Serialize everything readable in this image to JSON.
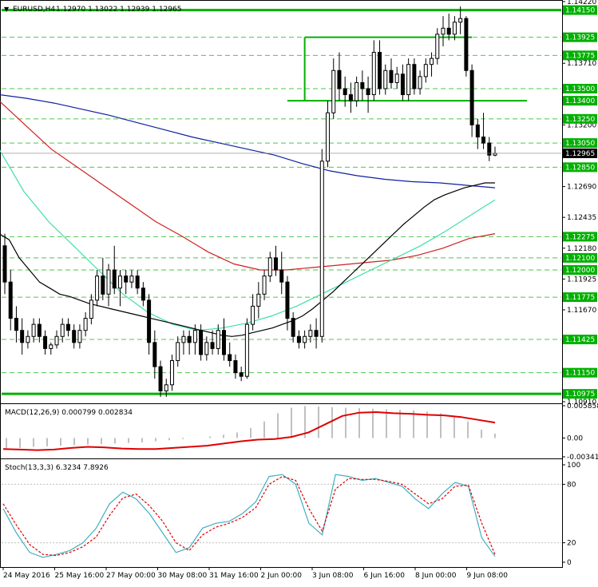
{
  "header": {
    "arrow": "▼",
    "symbol": "EURUSD,H4",
    "ohlc": "1.12970 1.13022 1.12939 1.12965"
  },
  "colors": {
    "bull_body": "#ffffff",
    "bear_body": "#000000",
    "candle_outline": "#000000",
    "sma_short": "#000000",
    "sma_cyan": "#40e0a0",
    "sma_red": "#d02020",
    "sma_blue": "#1020a0",
    "level_green": "#00b000",
    "macd_hist": "#c0c0c0",
    "macd_signal": "#e00000",
    "stoch_main": "#40b0c0",
    "stoch_signal": "#e00000",
    "current_price_bg": "#000000"
  },
  "chart_data": [
    {
      "type": "candlestick",
      "name": "EURUSD H4",
      "ylim": [
        1.1091,
        1.1422
      ],
      "y_ticks": [
        "1.14220",
        "1.13710",
        "1.13200",
        "1.12690",
        "1.12435",
        "1.12180",
        "1.11925",
        "1.11670",
        "1.10910"
      ],
      "level_labels": [
        "1.14150",
        "1.13925",
        "1.13775",
        "1.13500",
        "1.13400",
        "1.13250",
        "1.13050",
        "1.12850",
        "1.12275",
        "1.12100",
        "1.12000",
        "1.11775",
        "1.11425",
        "1.11150",
        "1.10975"
      ],
      "current_price": "1.12965",
      "horizontal_levels": [
        {
          "price": 1.1415,
          "style": "solid-thick"
        },
        {
          "price": 1.10975,
          "style": "solid-thick"
        },
        {
          "price": 1.134,
          "style": "solid"
        }
      ],
      "dashed_levels": [
        1.13925,
        1.13775,
        1.135,
        1.1325,
        1.1305,
        1.1285,
        1.12275,
        1.121,
        1.12,
        1.11775,
        1.11425,
        1.1115
      ],
      "box": {
        "top": 1.13925,
        "bottom": 1.134
      },
      "candles": [
        [
          1.122,
          1.123,
          1.118,
          1.119
        ],
        [
          1.119,
          1.12,
          1.115,
          1.116
        ],
        [
          1.116,
          1.117,
          1.114,
          1.115
        ],
        [
          1.115,
          1.116,
          1.113,
          1.114
        ],
        [
          1.114,
          1.115,
          1.1135,
          1.1145
        ],
        [
          1.1145,
          1.116,
          1.114,
          1.1155
        ],
        [
          1.1155,
          1.116,
          1.114,
          1.1145
        ],
        [
          1.1145,
          1.115,
          1.113,
          1.1135
        ],
        [
          1.1135,
          1.114,
          1.113,
          1.1138
        ],
        [
          1.1138,
          1.115,
          1.1135,
          1.1145
        ],
        [
          1.1145,
          1.116,
          1.114,
          1.1155
        ],
        [
          1.1155,
          1.116,
          1.1145,
          1.115
        ],
        [
          1.115,
          1.1155,
          1.1135,
          1.114
        ],
        [
          1.114,
          1.1155,
          1.1135,
          1.115
        ],
        [
          1.115,
          1.1165,
          1.1145,
          1.116
        ],
        [
          1.116,
          1.118,
          1.1155,
          1.1175
        ],
        [
          1.1175,
          1.12,
          1.117,
          1.1195
        ],
        [
          1.1195,
          1.121,
          1.1175,
          1.118
        ],
        [
          1.118,
          1.1205,
          1.117,
          1.12
        ],
        [
          1.12,
          1.122,
          1.118,
          1.1185
        ],
        [
          1.1185,
          1.12,
          1.117,
          1.1195
        ],
        [
          1.1195,
          1.12,
          1.118,
          1.119
        ],
        [
          1.119,
          1.12,
          1.1185,
          1.1195
        ],
        [
          1.1195,
          1.12,
          1.118,
          1.1185
        ],
        [
          1.1185,
          1.119,
          1.117,
          1.1175
        ],
        [
          1.1175,
          1.118,
          1.113,
          1.114
        ],
        [
          1.114,
          1.115,
          1.111,
          1.112
        ],
        [
          1.112,
          1.1125,
          1.1095,
          1.11
        ],
        [
          1.11,
          1.111,
          1.1095,
          1.1105
        ],
        [
          1.1105,
          1.113,
          1.11,
          1.1125
        ],
        [
          1.1125,
          1.1145,
          1.112,
          1.114
        ],
        [
          1.114,
          1.115,
          1.113,
          1.1145
        ],
        [
          1.1145,
          1.115,
          1.113,
          1.114
        ],
        [
          1.114,
          1.1155,
          1.113,
          1.115
        ],
        [
          1.115,
          1.1155,
          1.1125,
          1.113
        ],
        [
          1.113,
          1.1145,
          1.1125,
          1.114
        ],
        [
          1.114,
          1.115,
          1.113,
          1.1135
        ],
        [
          1.1135,
          1.1155,
          1.113,
          1.115
        ],
        [
          1.115,
          1.116,
          1.1125,
          1.113
        ],
        [
          1.113,
          1.114,
          1.112,
          1.1125
        ],
        [
          1.1125,
          1.113,
          1.111,
          1.1115
        ],
        [
          1.1115,
          1.112,
          1.1108,
          1.1112
        ],
        [
          1.1112,
          1.116,
          1.111,
          1.1155
        ],
        [
          1.1155,
          1.118,
          1.115,
          1.117
        ],
        [
          1.117,
          1.119,
          1.116,
          1.118
        ],
        [
          1.118,
          1.12,
          1.1175,
          1.1195
        ],
        [
          1.1195,
          1.1215,
          1.119,
          1.121
        ],
        [
          1.121,
          1.122,
          1.1195,
          1.12
        ],
        [
          1.12,
          1.1215,
          1.118,
          1.119
        ],
        [
          1.119,
          1.1195,
          1.115,
          1.116
        ],
        [
          1.116,
          1.1165,
          1.114,
          1.1145
        ],
        [
          1.1145,
          1.115,
          1.1135,
          1.114
        ],
        [
          1.114,
          1.115,
          1.1135,
          1.1145
        ],
        [
          1.1145,
          1.1155,
          1.114,
          1.115
        ],
        [
          1.115,
          1.116,
          1.1135,
          1.1145
        ],
        [
          1.1145,
          1.13,
          1.114,
          1.129
        ],
        [
          1.129,
          1.134,
          1.1285,
          1.133
        ],
        [
          1.133,
          1.1375,
          1.1325,
          1.1365
        ],
        [
          1.1365,
          1.138,
          1.134,
          1.135
        ],
        [
          1.135,
          1.136,
          1.1335,
          1.1345
        ],
        [
          1.1345,
          1.1355,
          1.133,
          1.134
        ],
        [
          1.134,
          1.136,
          1.1335,
          1.1355
        ],
        [
          1.1355,
          1.1365,
          1.134,
          1.135
        ],
        [
          1.135,
          1.136,
          1.133,
          1.1345
        ],
        [
          1.1345,
          1.139,
          1.134,
          1.138
        ],
        [
          1.138,
          1.139,
          1.1345,
          1.135
        ],
        [
          1.135,
          1.137,
          1.1345,
          1.1365
        ],
        [
          1.1365,
          1.1375,
          1.135,
          1.1355
        ],
        [
          1.1355,
          1.1368,
          1.135,
          1.1362
        ],
        [
          1.1362,
          1.137,
          1.134,
          1.1345
        ],
        [
          1.1345,
          1.1375,
          1.134,
          1.137
        ],
        [
          1.137,
          1.1375,
          1.1345,
          1.135
        ],
        [
          1.135,
          1.1365,
          1.1345,
          1.136
        ],
        [
          1.136,
          1.1375,
          1.1355,
          1.137
        ],
        [
          1.137,
          1.138,
          1.136,
          1.1375
        ],
        [
          1.1375,
          1.14,
          1.137,
          1.1395
        ],
        [
          1.1395,
          1.141,
          1.1385,
          1.14
        ],
        [
          1.14,
          1.1412,
          1.139,
          1.1395
        ],
        [
          1.1395,
          1.141,
          1.139,
          1.1405
        ],
        [
          1.1405,
          1.1418,
          1.1395,
          1.1408
        ],
        [
          1.1408,
          1.141,
          1.136,
          1.1365
        ],
        [
          1.1365,
          1.137,
          1.131,
          1.132
        ],
        [
          1.132,
          1.1325,
          1.13,
          1.131
        ],
        [
          1.131,
          1.133,
          1.13,
          1.1305
        ],
        [
          1.1305,
          1.131,
          1.129,
          1.1295
        ],
        [
          1.1295,
          1.1302,
          1.1294,
          1.12965
        ]
      ],
      "sma_short": [
        1.123,
        1.1225,
        1.121,
        1.12,
        1.119,
        1.1185,
        1.118,
        1.1178,
        1.1175,
        1.1172,
        1.117,
        1.1168,
        1.1166,
        1.1164,
        1.1162,
        1.116,
        1.1158,
        1.1156,
        1.1154,
        1.1152,
        1.115,
        1.1148,
        1.1146,
        1.1145,
        1.1146,
        1.1148,
        1.115,
        1.1152,
        1.1155,
        1.1158,
        1.1162,
        1.1168,
        1.1175,
        1.1182,
        1.119,
        1.1198,
        1.1206,
        1.1214,
        1.1222,
        1.123,
        1.1238,
        1.1245,
        1.1252,
        1.1258,
        1.1262,
        1.1265,
        1.1268,
        1.127,
        1.1272,
        1.1272
      ],
      "sma_cyan": [
        1.13,
        1.1265,
        1.124,
        1.122,
        1.12,
        1.118,
        1.1165,
        1.1155,
        1.115,
        1.1152,
        1.1156,
        1.1162,
        1.117,
        1.118,
        1.119,
        1.12,
        1.121,
        1.122,
        1.1232,
        1.1245,
        1.1258
      ],
      "sma_red": [
        1.134,
        1.132,
        1.13,
        1.1285,
        1.127,
        1.1255,
        1.124,
        1.1228,
        1.1215,
        1.1205,
        1.12,
        1.12,
        1.1202,
        1.1204,
        1.1206,
        1.1208,
        1.1212,
        1.1218,
        1.1226,
        1.123
      ],
      "sma_blue": [
        1.1345,
        1.1342,
        1.1338,
        1.1333,
        1.1328,
        1.1322,
        1.1316,
        1.131,
        1.1305,
        1.13,
        1.1295,
        1.1288,
        1.1282,
        1.1278,
        1.1275,
        1.1273,
        1.1272,
        1.127,
        1.1268
      ]
    },
    {
      "type": "bar-line",
      "name": "MACD",
      "label": "MACD(12,26,9) 0.000799 0.002834",
      "ylim": [
        -0.003411,
        0.005858
      ],
      "y_ticks": [
        "0.005858",
        "0.00",
        "-0.003411"
      ],
      "histogram": [
        -0.002,
        -0.0018,
        -0.0016,
        -0.0015,
        -0.0014,
        -0.0013,
        -0.0012,
        -0.0011,
        -0.001,
        -0.0009,
        -0.0008,
        -0.0006,
        -0.0004,
        -0.0002,
        0.0,
        0.0003,
        0.0006,
        0.001,
        0.0018,
        0.003,
        0.0045,
        0.0055,
        0.0058,
        0.0057,
        0.0056,
        0.0055,
        0.0054,
        0.0053,
        0.0052,
        0.0051,
        0.005,
        0.0048,
        0.0045,
        0.004,
        0.003,
        0.0015,
        0.0008
      ],
      "signal": [
        -0.002,
        -0.0021,
        -0.0022,
        -0.0021,
        -0.0018,
        -0.0016,
        -0.0017,
        -0.0019,
        -0.002,
        -0.002,
        -0.0018,
        -0.0016,
        -0.0014,
        -0.001,
        -0.0006,
        -0.0003,
        -0.0002,
        0.0002,
        0.001,
        0.0025,
        0.004,
        0.0046,
        0.0047,
        0.0045,
        0.0044,
        0.0042,
        0.0041,
        0.0038,
        0.0033,
        0.0028
      ],
      "signal_value": 0.002834,
      "macd_value": 0.000799
    },
    {
      "type": "line",
      "name": "Stochastic",
      "label": "Stoch(13,3,3) 6.3234 7.8926",
      "ylim": [
        0,
        100
      ],
      "y_ticks": [
        "100",
        "80",
        "20",
        "0"
      ],
      "main": [
        55,
        30,
        10,
        5,
        8,
        12,
        20,
        35,
        60,
        72,
        65,
        50,
        30,
        10,
        15,
        35,
        40,
        42,
        50,
        62,
        88,
        90,
        80,
        40,
        28,
        90,
        88,
        84,
        86,
        82,
        78,
        65,
        55,
        70,
        82,
        78,
        25,
        6
      ],
      "signal": [
        60,
        38,
        18,
        8,
        7,
        10,
        16,
        26,
        48,
        66,
        70,
        58,
        42,
        20,
        12,
        28,
        36,
        40,
        46,
        56,
        80,
        88,
        84,
        55,
        32,
        75,
        86,
        85,
        85,
        83,
        80,
        70,
        60,
        65,
        78,
        79,
        40,
        8
      ],
      "main_value": 6.3234,
      "signal_value": 7.8926
    }
  ],
  "x_axis": {
    "labels": [
      "24 May 2016",
      "25 May 16:00",
      "27 May 00:00",
      "30 May 08:00",
      "31 May 16:00",
      "2 Jun 00:00",
      "3 Jun 08:00",
      "6 Jun 16:00",
      "8 Jun 00:00",
      "9 Jun 08:00"
    ]
  }
}
